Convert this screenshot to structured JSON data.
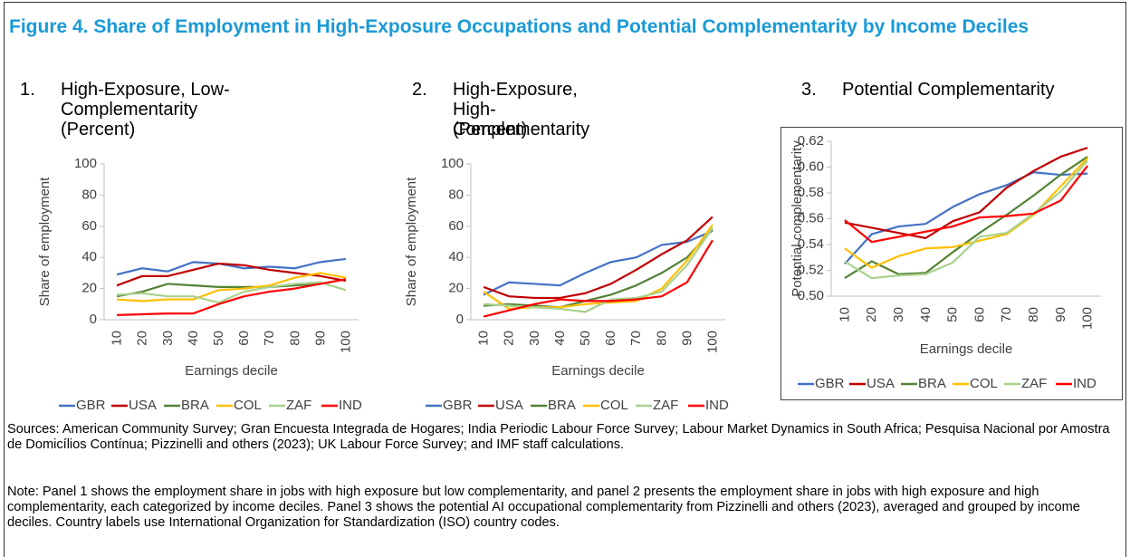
{
  "title": "Figure 4. Share of Employment in High-Exposure Occupations and Potential Complementarity by Income Deciles",
  "chart_data": [
    {
      "type": "line",
      "number": "1.",
      "title": "High-Exposure, Low-Complementarity",
      "subtitle": "(Percent)",
      "x_label": "Earnings decile",
      "y_label": "Share of employment",
      "categories": [
        "10",
        "20",
        "30",
        "40",
        "50",
        "60",
        "70",
        "80",
        "90",
        "100"
      ],
      "ylim": [
        0,
        100
      ],
      "yticks": [
        0,
        20,
        40,
        60,
        80,
        100
      ],
      "legend": "bottom",
      "series": [
        {
          "name": "GBR",
          "color": "#4472c4",
          "values": [
            29,
            33,
            31,
            37,
            36,
            33,
            34,
            33,
            37,
            39
          ]
        },
        {
          "name": "USA",
          "color": "#c00000",
          "values": [
            22,
            28,
            28,
            32,
            36,
            35,
            32,
            30,
            28,
            25
          ]
        },
        {
          "name": "BRA",
          "color": "#548235",
          "values": [
            15,
            18,
            23,
            22,
            21,
            21,
            21,
            22,
            23,
            26
          ]
        },
        {
          "name": "COL",
          "color": "#ffc000",
          "values": [
            13,
            12,
            13,
            13,
            19,
            20,
            22,
            27,
            30,
            27
          ]
        },
        {
          "name": "ZAF",
          "color": "#a9d18e",
          "values": [
            16,
            17,
            15,
            15,
            11,
            18,
            21,
            23,
            24,
            19
          ]
        },
        {
          "name": "IND",
          "color": "#ff0000",
          "values": [
            3,
            3.5,
            4,
            4,
            10,
            15,
            18,
            20,
            23,
            26
          ]
        }
      ]
    },
    {
      "type": "line",
      "number": "2.",
      "title": "High-Exposure, High-Complementarity",
      "subtitle": "(Percent)",
      "x_label": "Earnings decile",
      "y_label": "Share of employment",
      "categories": [
        "10",
        "20",
        "30",
        "40",
        "50",
        "60",
        "70",
        "80",
        "90",
        "100"
      ],
      "ylim": [
        0,
        100
      ],
      "yticks": [
        0,
        20,
        40,
        60,
        80,
        100
      ],
      "legend": "bottom",
      "series": [
        {
          "name": "GBR",
          "color": "#4472c4",
          "values": [
            16,
            24,
            23,
            22,
            30,
            37,
            40,
            48,
            50,
            57
          ]
        },
        {
          "name": "USA",
          "color": "#c00000",
          "values": [
            21,
            15,
            14,
            14,
            17,
            23,
            32,
            42,
            51,
            66
          ]
        },
        {
          "name": "BRA",
          "color": "#548235",
          "values": [
            9,
            10,
            9,
            8,
            12,
            16,
            22,
            30,
            40,
            58
          ]
        },
        {
          "name": "COL",
          "color": "#ffc000",
          "values": [
            18,
            7,
            8,
            8,
            10,
            11,
            12,
            20,
            38,
            61
          ]
        },
        {
          "name": "ZAF",
          "color": "#a9d18e",
          "values": [
            10,
            9,
            8,
            7,
            5,
            13,
            14,
            18,
            35,
            59
          ]
        },
        {
          "name": "IND",
          "color": "#ff0000",
          "values": [
            2,
            6,
            10,
            13,
            12,
            12,
            13,
            15,
            24,
            51
          ]
        }
      ]
    },
    {
      "type": "line",
      "number": "3.",
      "title": "Potential Complementarity",
      "x_label": "Earnings decile",
      "y_label": "Potential complementarity",
      "categories": [
        "10",
        "20",
        "30",
        "40",
        "50",
        "60",
        "70",
        "80",
        "90",
        "100"
      ],
      "ylim": [
        0.5,
        0.62
      ],
      "yticks": [
        {
          "value": 0.5,
          "label": "0.50"
        },
        0.52,
        0.54,
        0.56,
        0.58,
        {
          "value": 0.6,
          "label": "0.60"
        },
        0.62
      ],
      "legend": "bottom",
      "series": [
        {
          "name": "GBR",
          "color": "#4472c4",
          "values": [
            0.525,
            0.548,
            0.554,
            0.556,
            0.569,
            0.579,
            0.586,
            0.596,
            0.594,
            0.595
          ]
        },
        {
          "name": "USA",
          "color": "#c00000",
          "values": [
            0.557,
            0.553,
            0.549,
            0.545,
            0.558,
            0.565,
            0.584,
            0.597,
            0.608,
            0.615
          ]
        },
        {
          "name": "BRA",
          "color": "#548235",
          "values": [
            0.514,
            0.527,
            0.517,
            0.518,
            0.534,
            0.549,
            0.563,
            0.578,
            0.594,
            0.608
          ]
        },
        {
          "name": "COL",
          "color": "#ffc000",
          "values": [
            0.537,
            0.522,
            0.531,
            0.537,
            0.538,
            0.543,
            0.548,
            0.563,
            0.585,
            0.607
          ]
        },
        {
          "name": "ZAF",
          "color": "#a9d18e",
          "values": [
            0.527,
            0.514,
            0.516,
            0.517,
            0.526,
            0.546,
            0.549,
            0.564,
            0.581,
            0.605
          ]
        },
        {
          "name": "IND",
          "color": "#ff0000",
          "values": [
            0.559,
            0.542,
            0.546,
            0.55,
            0.554,
            0.561,
            0.562,
            0.564,
            0.574,
            0.601
          ]
        }
      ]
    }
  ],
  "sources": "Sources: American Community Survey; Gran Encuesta Integrada de Hogares; India Periodic Labour Force Survey; Labour Market Dynamics in South Africa; Pesquisa Nacional por Amostra de Domicílios Contínua; Pizzinelli and others (2023); UK Labour Force Survey; and IMF staff calculations.",
  "note": "Note: Panel 1 shows the employment share in jobs with high exposure but low complementarity, and panel 2 presents the employment share in jobs with high exposure and high complementarity, each categorized by income deciles. Panel 3 shows the potential AI occupational complementarity from Pizzinelli and others (2023), averaged and grouped by income deciles. Country labels use International Organization for Standardization (ISO) country codes."
}
